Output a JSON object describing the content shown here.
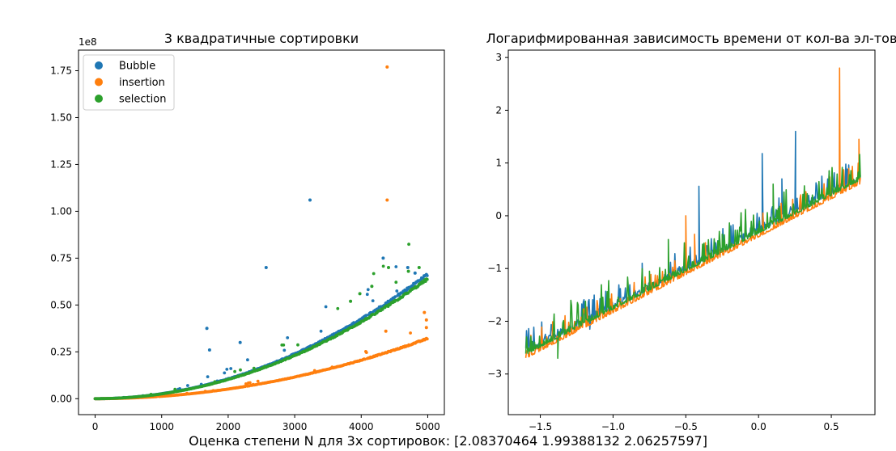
{
  "figure_caption": "Оценка степени N для 3х сортировок: [2.08370464 1.99388132 2.06257597]",
  "chart_data": [
    {
      "type": "scatter",
      "title": "3 квадратичные сортировки",
      "xlabel": "",
      "ylabel": "",
      "y_offset_text": "1e8",
      "xlim": [
        -250,
        5250
      ],
      "ylim": [
        -8500000,
        186000000
      ],
      "xticks": [
        0,
        1000,
        2000,
        3000,
        4000,
        5000
      ],
      "xtick_labels": [
        "0",
        "1000",
        "2000",
        "3000",
        "4000",
        "5000"
      ],
      "yticks": [
        0,
        25000000,
        50000000,
        75000000,
        100000000,
        125000000,
        150000000,
        175000000
      ],
      "ytick_labels": [
        "0.00",
        "0.25",
        "0.50",
        "0.75",
        "1.00",
        "1.25",
        "1.50",
        "1.75"
      ],
      "grid": false,
      "legend": "top-left",
      "series": [
        {
          "name": "Bubble",
          "color": "#1f77b4",
          "trend_coefficient": 2.65,
          "exponent": 2.0,
          "x": [
            3230,
            2570,
            4330,
            1680,
            1720,
            2180,
            4700,
            4810
          ],
          "y": [
            106000000,
            70000000,
            75000000,
            37500000,
            26000000,
            30000000,
            70000000,
            67000000
          ]
        },
        {
          "name": "insertion",
          "color": "#ff7f0e",
          "trend_coefficient": 1.28,
          "exponent": 2.0,
          "x": [
            4390,
            4390,
            4950,
            4980,
            4980,
            4370
          ],
          "y": [
            177000000,
            106000000,
            46000000,
            42000000,
            38000000,
            36000000
          ]
        },
        {
          "name": "selection",
          "color": "#2ca02c",
          "trend_coefficient": 2.55,
          "exponent": 2.0,
          "x": [
            4410,
            4160,
            4710,
            3980,
            4870,
            3840
          ],
          "y": [
            70000000,
            60000000,
            68000000,
            56000000,
            70000000,
            52000000
          ]
        }
      ]
    },
    {
      "type": "line",
      "title": "Логарифмированная зависимость времени от кол-ва эл-тов",
      "xlabel": "",
      "ylabel": "",
      "xlim": [
        -1.72,
        0.8
      ],
      "ylim": [
        -3.77,
        3.14
      ],
      "xticks": [
        -1.5,
        -1.0,
        -0.5,
        0.0,
        0.5
      ],
      "xtick_labels": [
        "−1.5",
        "−1.0",
        "−0.5",
        "0.0",
        "0.5"
      ],
      "yticks": [
        -3,
        -2,
        -1,
        0,
        1,
        2,
        3
      ],
      "ytick_labels": [
        "−3",
        "−2",
        "−1",
        "0",
        "1",
        "2",
        "3"
      ],
      "grid": false,
      "x_range": [
        -1.6,
        0.7
      ],
      "series": [
        {
          "name": "",
          "color": "#1f77b4",
          "intercept": -0.3,
          "slope": 1.44,
          "spikes_x": [
            0.254,
            0.025,
            -0.41,
            -0.09,
            0.16,
            -0.8,
            -1.16
          ],
          "spikes_y": [
            1.6,
            1.18,
            0.56,
            0.0,
            0.7,
            -0.9,
            -2.15
          ]
        },
        {
          "name": "",
          "color": "#ff7f0e",
          "intercept": -0.4,
          "slope": 1.44,
          "spikes_x": [
            0.557,
            -0.5,
            -0.44,
            -0.95,
            0.69
          ],
          "spikes_y": [
            2.8,
            0.0,
            -0.35,
            -1.6,
            1.45
          ]
        },
        {
          "name": "",
          "color": "#2ca02c",
          "intercept": -0.33,
          "slope": 1.44,
          "spikes_x": [
            -0.62,
            -0.75,
            -1.38,
            -0.25,
            0.1
          ],
          "spikes_y": [
            -0.45,
            -1.05,
            -2.7,
            -0.35,
            0.6
          ]
        }
      ]
    }
  ]
}
